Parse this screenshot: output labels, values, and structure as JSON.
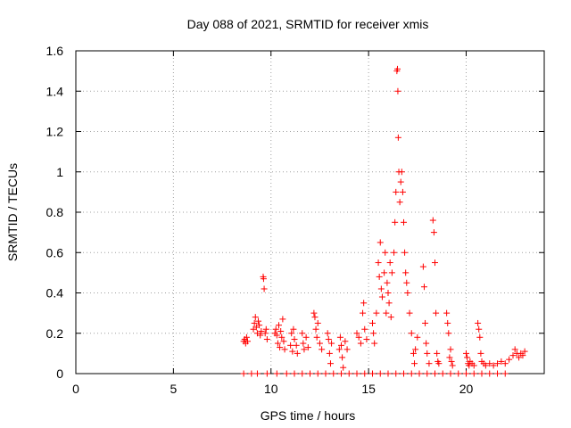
{
  "chart_data": {
    "type": "scatter",
    "title": "Day 088 of 2021, SRMTID for receiver xmis",
    "xlabel": "GPS time / hours",
    "ylabel": "SRMTID / TECUs",
    "xlim": [
      0,
      24
    ],
    "ylim": [
      0,
      1.6
    ],
    "grid": true,
    "x_ticks": [
      0,
      5,
      10,
      15,
      20
    ],
    "x_tick_labels": [
      "0",
      "5",
      "10",
      "15",
      "20"
    ],
    "y_ticks": [
      0,
      0.2,
      0.4,
      0.6,
      0.8,
      1.0,
      1.2,
      1.4,
      1.6
    ],
    "y_tick_labels": [
      "0",
      "0.2",
      "0.4",
      "0.6",
      "0.8",
      "1",
      "1.2",
      "1.4",
      "1.6"
    ],
    "marker": "plus",
    "color": "#ff0000",
    "series": [
      {
        "name": "SRMTID",
        "points": [
          [
            8.6,
            0.16
          ],
          [
            8.65,
            0.17
          ],
          [
            8.7,
            0.15
          ],
          [
            8.75,
            0.18
          ],
          [
            8.8,
            0.16
          ],
          [
            9.1,
            0.22
          ],
          [
            9.15,
            0.25
          ],
          [
            9.2,
            0.28
          ],
          [
            9.25,
            0.23
          ],
          [
            9.3,
            0.2
          ],
          [
            9.35,
            0.26
          ],
          [
            9.4,
            0.24
          ],
          [
            9.45,
            0.19
          ],
          [
            9.5,
            0.21
          ],
          [
            9.6,
            0.48
          ],
          [
            9.62,
            0.47
          ],
          [
            9.65,
            0.42
          ],
          [
            9.7,
            0.2
          ],
          [
            9.75,
            0.22
          ],
          [
            9.8,
            0.17
          ],
          [
            10.2,
            0.2
          ],
          [
            10.25,
            0.22
          ],
          [
            10.3,
            0.19
          ],
          [
            10.35,
            0.15
          ],
          [
            10.4,
            0.24
          ],
          [
            10.45,
            0.13
          ],
          [
            10.5,
            0.21
          ],
          [
            10.55,
            0.18
          ],
          [
            10.6,
            0.27
          ],
          [
            10.65,
            0.16
          ],
          [
            10.7,
            0.12
          ],
          [
            11.0,
            0.14
          ],
          [
            11.05,
            0.2
          ],
          [
            11.1,
            0.11
          ],
          [
            11.15,
            0.22
          ],
          [
            11.2,
            0.17
          ],
          [
            11.3,
            0.14
          ],
          [
            11.35,
            0.1
          ],
          [
            11.6,
            0.2
          ],
          [
            11.65,
            0.15
          ],
          [
            11.7,
            0.12
          ],
          [
            11.8,
            0.18
          ],
          [
            11.9,
            0.13
          ],
          [
            12.2,
            0.3
          ],
          [
            12.25,
            0.28
          ],
          [
            12.3,
            0.22
          ],
          [
            12.35,
            0.18
          ],
          [
            12.4,
            0.25
          ],
          [
            12.5,
            0.15
          ],
          [
            12.6,
            0.12
          ],
          [
            12.9,
            0.2
          ],
          [
            12.95,
            0.17
          ],
          [
            13.0,
            0.1
          ],
          [
            13.05,
            0.05
          ],
          [
            13.1,
            0.15
          ],
          [
            13.5,
            0.12
          ],
          [
            13.55,
            0.18
          ],
          [
            13.6,
            0.14
          ],
          [
            13.65,
            0.08
          ],
          [
            13.7,
            0.03
          ],
          [
            13.8,
            0.16
          ],
          [
            13.9,
            0.12
          ],
          [
            14.4,
            0.2
          ],
          [
            14.5,
            0.18
          ],
          [
            14.6,
            0.15
          ],
          [
            14.7,
            0.3
          ],
          [
            14.75,
            0.35
          ],
          [
            14.8,
            0.22
          ],
          [
            14.9,
            0.17
          ],
          [
            15.2,
            0.25
          ],
          [
            15.25,
            0.2
          ],
          [
            15.3,
            0.15
          ],
          [
            15.4,
            0.3
          ],
          [
            15.5,
            0.55
          ],
          [
            15.55,
            0.48
          ],
          [
            15.6,
            0.65
          ],
          [
            15.65,
            0.42
          ],
          [
            15.7,
            0.38
          ],
          [
            15.8,
            0.5
          ],
          [
            15.85,
            0.6
          ],
          [
            15.9,
            0.3
          ],
          [
            15.95,
            0.45
          ],
          [
            16.0,
            0.4
          ],
          [
            16.05,
            0.35
          ],
          [
            16.1,
            0.55
          ],
          [
            16.15,
            0.28
          ],
          [
            16.2,
            0.5
          ],
          [
            16.3,
            0.6
          ],
          [
            16.35,
            0.75
          ],
          [
            16.4,
            0.9
          ],
          [
            16.45,
            1.5
          ],
          [
            16.48,
            1.51
          ],
          [
            16.5,
            1.4
          ],
          [
            16.52,
            1.17
          ],
          [
            16.55,
            1.0
          ],
          [
            16.6,
            0.85
          ],
          [
            16.65,
            0.95
          ],
          [
            16.7,
            1.0
          ],
          [
            16.75,
            0.9
          ],
          [
            16.8,
            0.75
          ],
          [
            16.85,
            0.6
          ],
          [
            16.9,
            0.5
          ],
          [
            16.95,
            0.45
          ],
          [
            17.0,
            0.4
          ],
          [
            17.1,
            0.3
          ],
          [
            17.2,
            0.2
          ],
          [
            17.3,
            0.1
          ],
          [
            17.35,
            0.05
          ],
          [
            17.4,
            0.12
          ],
          [
            17.5,
            0.18
          ],
          [
            17.8,
            0.53
          ],
          [
            17.85,
            0.43
          ],
          [
            17.9,
            0.25
          ],
          [
            17.95,
            0.15
          ],
          [
            18.0,
            0.1
          ],
          [
            18.1,
            0.05
          ],
          [
            18.3,
            0.76
          ],
          [
            18.35,
            0.7
          ],
          [
            18.4,
            0.55
          ],
          [
            18.45,
            0.3
          ],
          [
            18.5,
            0.1
          ],
          [
            18.55,
            0.06
          ],
          [
            18.6,
            0.05
          ],
          [
            19.0,
            0.3
          ],
          [
            19.05,
            0.25
          ],
          [
            19.1,
            0.2
          ],
          [
            19.15,
            0.08
          ],
          [
            19.2,
            0.12
          ],
          [
            19.25,
            0.06
          ],
          [
            19.3,
            0.04
          ],
          [
            20.0,
            0.1
          ],
          [
            20.05,
            0.08
          ],
          [
            20.1,
            0.05
          ],
          [
            20.15,
            0.04
          ],
          [
            20.2,
            0.06
          ],
          [
            20.3,
            0.05
          ],
          [
            20.4,
            0.04
          ],
          [
            20.6,
            0.25
          ],
          [
            20.65,
            0.22
          ],
          [
            20.7,
            0.18
          ],
          [
            20.75,
            0.1
          ],
          [
            20.8,
            0.06
          ],
          [
            20.9,
            0.05
          ],
          [
            21.0,
            0.04
          ],
          [
            21.2,
            0.05
          ],
          [
            21.4,
            0.04
          ],
          [
            21.6,
            0.05
          ],
          [
            21.8,
            0.06
          ],
          [
            22.0,
            0.05
          ],
          [
            22.2,
            0.07
          ],
          [
            22.4,
            0.09
          ],
          [
            22.5,
            0.12
          ],
          [
            22.6,
            0.1
          ],
          [
            22.7,
            0.08
          ],
          [
            22.8,
            0.1
          ],
          [
            22.9,
            0.09
          ],
          [
            23.0,
            0.11
          ]
        ]
      }
    ],
    "zero_points_x": [
      8.6,
      9.0,
      9.3,
      9.8,
      10.3,
      10.8,
      11.2,
      11.6,
      12.0,
      12.4,
      12.8,
      13.2,
      13.6,
      14.0,
      14.4,
      14.8,
      15.2,
      15.6,
      16.0,
      16.4,
      16.8,
      17.2,
      17.6,
      18.0,
      18.4,
      18.8,
      19.2,
      19.6,
      20.0,
      20.4,
      20.8,
      21.2,
      21.6,
      22.0
    ]
  }
}
